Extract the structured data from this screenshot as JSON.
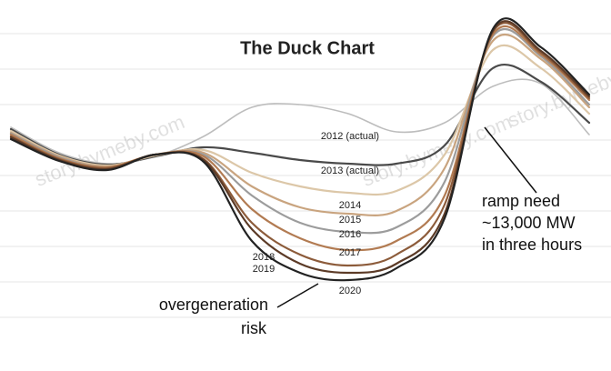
{
  "chart_data": {
    "type": "line",
    "title": "The Duck Chart",
    "x": [
      0,
      2,
      4,
      6,
      8,
      10,
      12,
      14,
      16,
      18,
      20,
      22,
      24
    ],
    "xlim": [
      0,
      24
    ],
    "ylim": [
      10000,
      30000
    ],
    "series": [
      {
        "name": "2012 (actual)",
        "color": "#bdbdbd",
        "values": [
          23000,
          21600,
          21000,
          21400,
          22500,
          24100,
          24250,
          23750,
          22750,
          23250,
          25250,
          25400,
          22600
        ]
      },
      {
        "name": "2013 (actual)",
        "color": "#4a4a4a",
        "values": [
          22900,
          21500,
          20950,
          21400,
          21900,
          21600,
          21200,
          21000,
          21000,
          22000,
          26250,
          25500,
          23250
        ]
      },
      {
        "name": "2014",
        "color": "#dcc7a8",
        "values": [
          22800,
          21450,
          20900,
          21450,
          21750,
          20500,
          19750,
          19400,
          19500,
          21500,
          27250,
          26250,
          23750
        ]
      },
      {
        "name": "2015",
        "color": "#c9a47f",
        "values": [
          22700,
          21400,
          20850,
          21500,
          21600,
          19750,
          18600,
          18250,
          18400,
          20750,
          27750,
          26750,
          24100
        ]
      },
      {
        "name": "2016",
        "color": "#9c9c9c",
        "values": [
          22650,
          21350,
          20800,
          21500,
          21500,
          19250,
          17750,
          17250,
          17500,
          20000,
          28000,
          26900,
          24250
        ]
      },
      {
        "name": "2017",
        "color": "#b27b52",
        "values": [
          22600,
          21300,
          20800,
          21500,
          21400,
          18500,
          16900,
          16250,
          16750,
          19250,
          28100,
          27000,
          24500
        ]
      },
      {
        "name": "2018",
        "color": "#8c5b3a",
        "values": [
          22500,
          21250,
          20750,
          21500,
          21250,
          17750,
          16000,
          15400,
          16000,
          18750,
          28250,
          27100,
          24600
        ]
      },
      {
        "name": "2019",
        "color": "#5c3b27",
        "values": [
          22450,
          21200,
          20700,
          21500,
          21200,
          17400,
          15500,
          15000,
          15500,
          18250,
          28300,
          27200,
          24700
        ]
      },
      {
        "name": "2020",
        "color": "#222222",
        "values": [
          22350,
          21150,
          20650,
          21500,
          21100,
          16750,
          15000,
          14600,
          15250,
          18000,
          28400,
          27400,
          24800
        ]
      }
    ],
    "annotations": [
      {
        "lines": [
          "ramp need",
          "~13,000 MW",
          "in three hours"
        ]
      },
      {
        "lines": [
          "overgeneration",
          "risk"
        ]
      }
    ],
    "watermark": "story.bymeby.com"
  }
}
